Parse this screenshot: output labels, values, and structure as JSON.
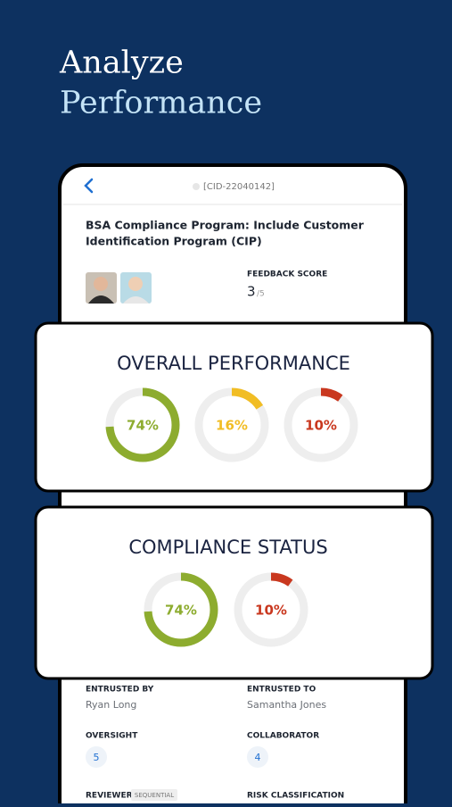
{
  "header": {
    "title_line1": "Analyze",
    "title_line2": "Performance"
  },
  "record": {
    "id": "[CID-22040142]",
    "title_line1": "BSA Compliance Program: Include Customer",
    "title_line2": "Identification Program (CIP)",
    "feedback_label": "FEEDBACK SCORE",
    "feedback_score": 3,
    "feedback_max": "/5"
  },
  "overall": {
    "title": "OVERALL PERFORMANCE",
    "rings": [
      {
        "value": 74,
        "label": "74%",
        "color": "#8dac2f"
      },
      {
        "value": 16,
        "label": "16%",
        "color": "#f1bd24"
      },
      {
        "value": 10,
        "label": "10%",
        "color": "#c9381f"
      }
    ]
  },
  "compliance": {
    "title": "COMPLIANCE STATUS",
    "rings": [
      {
        "value": 74,
        "label": "74%",
        "color": "#8dac2f"
      },
      {
        "value": 10,
        "label": "10%",
        "color": "#c9381f"
      }
    ]
  },
  "details": {
    "entrusted_by_label": "ENTRUSTED BY",
    "entrusted_by": "Ryan Long",
    "entrusted_to_label": "ENTRUSTED TO",
    "entrusted_to": "Samantha Jones",
    "oversight_label": "OVERSIGHT",
    "oversight": 5,
    "collaborator_label": "COLLABORATOR",
    "collaborator": 4,
    "reviewer_label": "REVIEWER",
    "reviewer_badge": "SEQUENTIAL",
    "risk_label": "RISK CLASSIFICATION"
  }
}
